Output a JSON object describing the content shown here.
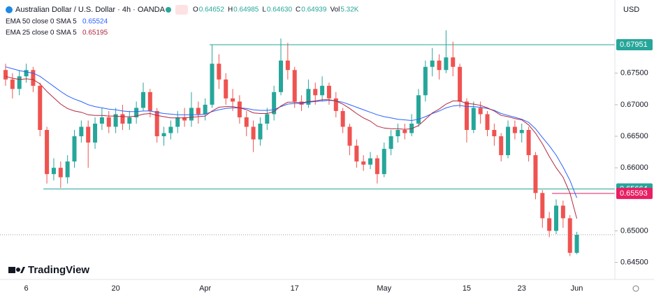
{
  "header": {
    "symbol": "Australian Dollar / U.S. Dollar · 4h · OANDA",
    "ohlc": [
      {
        "label": "O",
        "value": "0.64652"
      },
      {
        "label": "H",
        "value": "0.64985"
      },
      {
        "label": "L",
        "value": "0.64630"
      },
      {
        "label": "C",
        "value": "0.64939"
      },
      {
        "label": "Vol",
        "value": "5.32K"
      }
    ],
    "currency": "USD",
    "brand": "TradingView"
  },
  "chart_data": {
    "type": "candlestick",
    "categories": [
      null,
      null,
      null,
      "6",
      null,
      null,
      null,
      null,
      null,
      null,
      null,
      null,
      null,
      null,
      null,
      null,
      "20",
      null,
      null,
      null,
      null,
      null,
      null,
      null,
      null,
      null,
      null,
      null,
      null,
      "Apr",
      null,
      null,
      null,
      null,
      null,
      null,
      null,
      null,
      null,
      null,
      null,
      null,
      "17",
      null,
      null,
      null,
      null,
      null,
      null,
      null,
      null,
      null,
      null,
      null,
      null,
      "May",
      null,
      null,
      null,
      null,
      null,
      null,
      null,
      null,
      null,
      null,
      null,
      "15",
      null,
      null,
      null,
      null,
      null,
      null,
      null,
      "23",
      null,
      null,
      null,
      null,
      null,
      null,
      null,
      "Jun"
    ],
    "open": [
      0.6755,
      0.674,
      0.6725,
      0.6745,
      0.6755,
      0.673,
      0.666,
      0.659,
      0.66,
      0.6585,
      0.661,
      0.665,
      0.6665,
      0.664,
      0.667,
      0.668,
      0.6665,
      0.6685,
      0.667,
      0.668,
      0.6695,
      0.672,
      0.669,
      0.665,
      0.6655,
      0.6665,
      0.668,
      0.6675,
      0.6695,
      0.6685,
      0.67,
      0.6765,
      0.674,
      0.671,
      0.6705,
      0.668,
      0.6665,
      0.6645,
      0.667,
      0.6685,
      0.672,
      0.677,
      0.6755,
      0.6705,
      0.67,
      0.6725,
      0.6715,
      0.673,
      0.671,
      0.669,
      0.6665,
      0.6635,
      0.661,
      0.6605,
      0.6615,
      0.659,
      0.663,
      0.665,
      0.666,
      0.6655,
      0.667,
      0.6715,
      0.676,
      0.677,
      0.6755,
      0.6775,
      0.676,
      0.6705,
      0.666,
      0.6695,
      0.6685,
      0.666,
      0.665,
      0.662,
      0.6665,
      0.6655,
      0.666,
      0.662,
      0.656,
      0.652,
      0.65,
      0.654,
      0.652,
      0.64652
    ],
    "high": [
      0.6765,
      0.675,
      0.6755,
      0.6765,
      0.676,
      0.6735,
      0.6665,
      0.6615,
      0.661,
      0.662,
      0.666,
      0.6675,
      0.6675,
      0.668,
      0.6695,
      0.669,
      0.6695,
      0.67,
      0.669,
      0.6705,
      0.6735,
      0.6725,
      0.6695,
      0.6665,
      0.6675,
      0.669,
      0.6695,
      0.672,
      0.6705,
      0.671,
      0.6795,
      0.678,
      0.675,
      0.6725,
      0.6715,
      0.669,
      0.6675,
      0.668,
      0.6695,
      0.673,
      0.6805,
      0.6798,
      0.676,
      0.6715,
      0.674,
      0.6735,
      0.6745,
      0.6735,
      0.672,
      0.6695,
      0.667,
      0.6645,
      0.662,
      0.6625,
      0.662,
      0.664,
      0.666,
      0.667,
      0.667,
      0.6685,
      0.6725,
      0.677,
      0.679,
      0.678,
      0.6818,
      0.68,
      0.6765,
      0.671,
      0.6705,
      0.6705,
      0.669,
      0.667,
      0.6655,
      0.6675,
      0.6675,
      0.667,
      0.6665,
      0.6625,
      0.6565,
      0.653,
      0.655,
      0.6548,
      0.6525,
      0.64985
    ],
    "low": [
      0.673,
      0.671,
      0.6715,
      0.6735,
      0.672,
      0.665,
      0.6575,
      0.658,
      0.6568,
      0.6575,
      0.66,
      0.664,
      0.66,
      0.663,
      0.666,
      0.6655,
      0.6655,
      0.666,
      0.666,
      0.667,
      0.669,
      0.668,
      0.664,
      0.6635,
      0.6645,
      0.6655,
      0.6665,
      0.6665,
      0.667,
      0.6675,
      0.6695,
      0.6725,
      0.67,
      0.669,
      0.667,
      0.665,
      0.6625,
      0.6635,
      0.666,
      0.6675,
      0.6715,
      0.674,
      0.6695,
      0.669,
      0.6695,
      0.67,
      0.6705,
      0.67,
      0.668,
      0.6655,
      0.662,
      0.66,
      0.6595,
      0.6598,
      0.6575,
      0.6585,
      0.662,
      0.664,
      0.6645,
      0.665,
      0.6665,
      0.6705,
      0.6745,
      0.674,
      0.675,
      0.6745,
      0.6695,
      0.664,
      0.6655,
      0.667,
      0.665,
      0.6635,
      0.661,
      0.6615,
      0.6645,
      0.664,
      0.661,
      0.655,
      0.6505,
      0.649,
      0.6495,
      0.6505,
      0.646,
      0.6463
    ],
    "close": [
      0.674,
      0.6725,
      0.6745,
      0.6755,
      0.673,
      0.666,
      0.659,
      0.66,
      0.6585,
      0.661,
      0.665,
      0.6665,
      0.664,
      0.667,
      0.668,
      0.6665,
      0.6685,
      0.667,
      0.668,
      0.6695,
      0.672,
      0.669,
      0.665,
      0.6655,
      0.6665,
      0.668,
      0.6675,
      0.6695,
      0.6685,
      0.67,
      0.6765,
      0.674,
      0.671,
      0.6705,
      0.668,
      0.6665,
      0.6645,
      0.667,
      0.6685,
      0.672,
      0.677,
      0.6755,
      0.6705,
      0.67,
      0.6725,
      0.6715,
      0.673,
      0.671,
      0.669,
      0.6665,
      0.6635,
      0.661,
      0.6605,
      0.6615,
      0.659,
      0.663,
      0.665,
      0.666,
      0.6655,
      0.667,
      0.6715,
      0.676,
      0.677,
      0.6755,
      0.6775,
      0.676,
      0.6705,
      0.666,
      0.6695,
      0.6685,
      0.666,
      0.665,
      0.662,
      0.6665,
      0.6655,
      0.666,
      0.662,
      0.656,
      0.652,
      0.65,
      0.654,
      0.652,
      0.64652,
      0.64939
    ],
    "up_color": "#26a69a",
    "down_color": "#ef5350",
    "series": [
      {
        "name": "EMA 50 close 0 SMA 5",
        "color": "#2962ff",
        "values": [
          0.676,
          0.6757,
          0.6754,
          0.6752,
          0.675,
          0.6745,
          0.6737,
          0.6729,
          0.6721,
          0.6714,
          0.6709,
          0.6705,
          0.67,
          0.6697,
          0.6695,
          0.6693,
          0.6692,
          0.669,
          0.6689,
          0.6689,
          0.669,
          0.669,
          0.6688,
          0.6686,
          0.6685,
          0.6684,
          0.6684,
          0.6684,
          0.6684,
          0.6685,
          0.6689,
          0.6692,
          0.6694,
          0.6695,
          0.6695,
          0.6694,
          0.6692,
          0.6691,
          0.6691,
          0.6692,
          0.6697,
          0.6701,
          0.6702,
          0.6702,
          0.6704,
          0.6705,
          0.6706,
          0.6707,
          0.6706,
          0.6704,
          0.67,
          0.6696,
          0.6692,
          0.6688,
          0.6684,
          0.6681,
          0.6679,
          0.6677,
          0.6676,
          0.6675,
          0.6677,
          0.6681,
          0.6686,
          0.669,
          0.6695,
          0.6698,
          0.6699,
          0.6697,
          0.6697,
          0.6696,
          0.6694,
          0.6691,
          0.6686,
          0.6683,
          0.668,
          0.6677,
          0.6672,
          0.6662,
          0.6648,
          0.6635,
          0.662,
          0.6601,
          0.658,
          0.65524
        ]
      },
      {
        "name": "EMA 25 close 0 SMA 5",
        "color": "#b2283f",
        "values": [
          0.6745,
          0.6742,
          0.674,
          0.6741,
          0.674,
          0.6733,
          0.6721,
          0.6711,
          0.6701,
          0.6694,
          0.669,
          0.6688,
          0.6684,
          0.6683,
          0.6683,
          0.6682,
          0.6682,
          0.6681,
          0.6681,
          0.6682,
          0.6685,
          0.6686,
          0.6683,
          0.6681,
          0.6679,
          0.6679,
          0.6679,
          0.668,
          0.6681,
          0.6682,
          0.669,
          0.6696,
          0.6697,
          0.6697,
          0.6695,
          0.6692,
          0.6687,
          0.6686,
          0.6686,
          0.6689,
          0.6698,
          0.6704,
          0.6704,
          0.6703,
          0.6705,
          0.6706,
          0.6708,
          0.6708,
          0.6706,
          0.6701,
          0.6694,
          0.6686,
          0.6679,
          0.6674,
          0.6666,
          0.6663,
          0.6662,
          0.6662,
          0.6661,
          0.6662,
          0.6667,
          0.6677,
          0.6687,
          0.6693,
          0.6701,
          0.6706,
          0.6706,
          0.6702,
          0.6701,
          0.6699,
          0.6695,
          0.669,
          0.6683,
          0.6681,
          0.6678,
          0.6676,
          0.6668,
          0.6655,
          0.6638,
          0.6618,
          0.66,
          0.6585,
          0.656,
          0.65195
        ]
      }
    ],
    "levels": [
      {
        "value": 0.67951,
        "color": "#26a69a"
      },
      {
        "value": 0.65664,
        "color": "#26a69a"
      },
      {
        "value": 0.65593,
        "color": "#e91e63"
      }
    ],
    "ylim": [
      0.6423,
      0.6866
    ],
    "yticks": [
      {
        "value": 0.645,
        "label": "0.64500"
      },
      {
        "value": 0.65,
        "label": "0.65000"
      },
      {
        "value": 0.66,
        "label": "0.66000"
      },
      {
        "value": 0.665,
        "label": "0.66500"
      },
      {
        "value": 0.67,
        "label": "0.67000"
      },
      {
        "value": 0.675,
        "label": "0.67500"
      }
    ]
  }
}
